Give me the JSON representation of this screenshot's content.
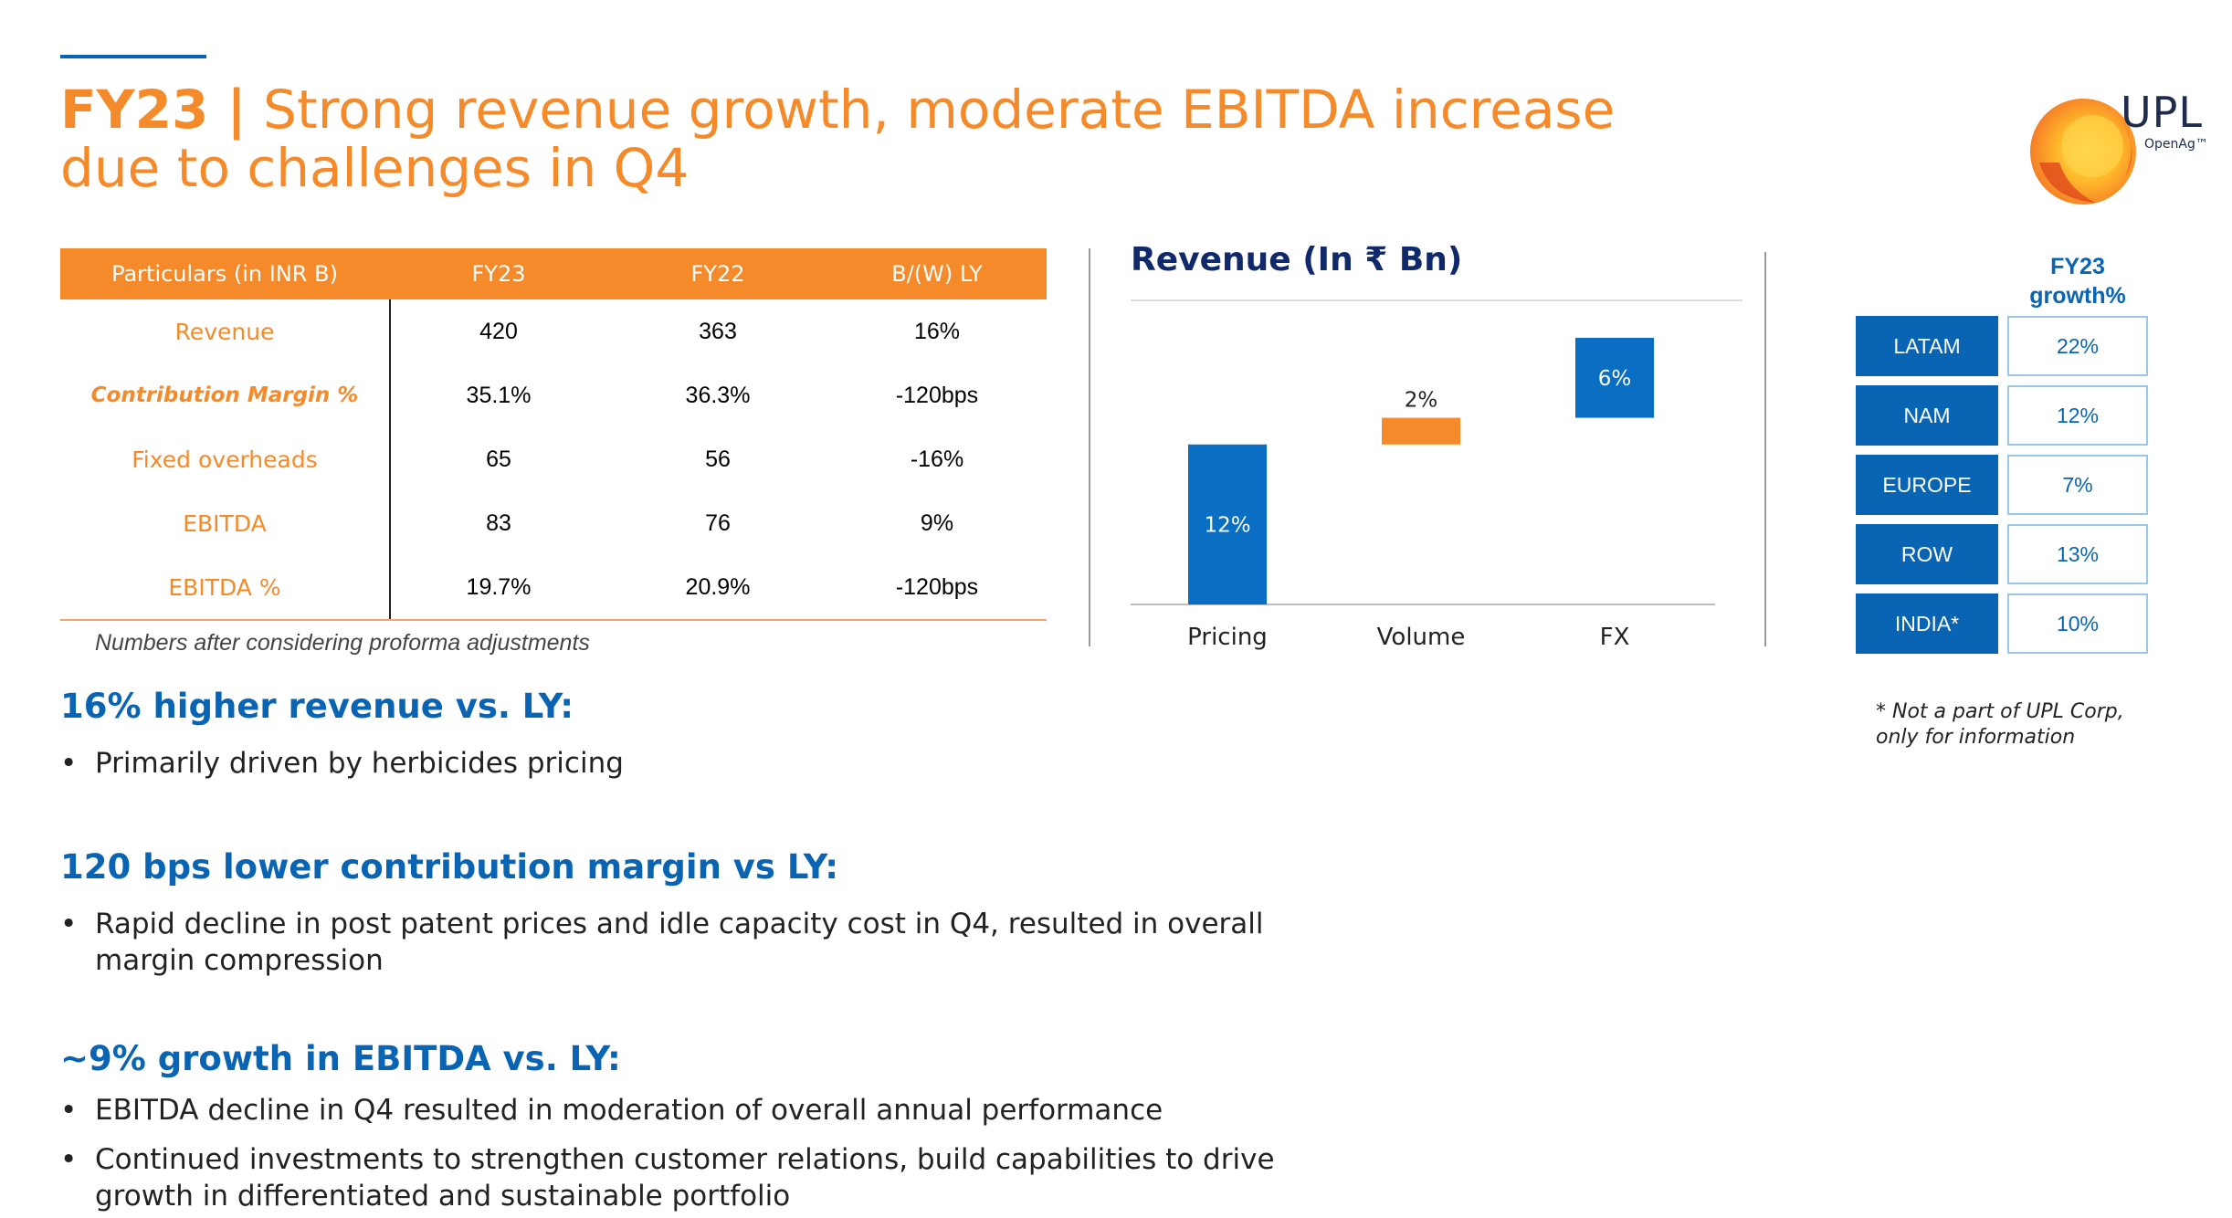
{
  "title": {
    "lead": "FY23 |",
    "text": "Strong revenue growth, moderate EBITDA increase due to challenges in Q4"
  },
  "logo": {
    "name": "UPL",
    "tagline": "OpenAg™"
  },
  "table": {
    "headers": [
      "Particulars  (in INR B)",
      "FY23",
      "FY22",
      "B/(W) LY"
    ],
    "rows": [
      [
        "Revenue",
        "420",
        "363",
        "16%"
      ],
      [
        "Contribution Margin %",
        "35.1%",
        "36.3%",
        "-120bps"
      ],
      [
        "Fixed overheads",
        "65",
        "56",
        "-16%"
      ],
      [
        "EBITDA",
        "83",
        "76",
        "9%"
      ],
      [
        "EBITDA %",
        "19.7%",
        "20.9%",
        "-120bps"
      ]
    ],
    "note": "Numbers after considering proforma adjustments"
  },
  "chart_data": {
    "type": "bar",
    "subtype": "waterfall",
    "title": "Revenue (In ₹ Bn)",
    "categories": [
      "Pricing",
      "Volume",
      "FX"
    ],
    "values": [
      12,
      2,
      6
    ],
    "value_labels": [
      "12%",
      "2%",
      "6%"
    ],
    "colors": [
      "#0a6ec2",
      "#f58a2a",
      "#0a6ec2"
    ]
  },
  "regions": {
    "header": "FY23 growth%",
    "rows": [
      {
        "name": "LATAM",
        "value": "22%"
      },
      {
        "name": "NAM",
        "value": "12%"
      },
      {
        "name": "EUROPE",
        "value": "7%"
      },
      {
        "name": "ROW",
        "value": "13%"
      },
      {
        "name": "INDIA*",
        "value": "10%"
      }
    ],
    "note": "* Not a part of UPL Corp, only for information"
  },
  "sections": [
    {
      "heading": "16% higher revenue vs. LY:",
      "bullets": [
        "Primarily driven by herbicides pricing"
      ]
    },
    {
      "heading": "120 bps lower contribution margin vs LY:",
      "bullets": [
        "Rapid decline in post patent prices and idle capacity cost in Q4, resulted in overall margin compression"
      ]
    },
    {
      "heading": "~9% growth in EBITDA vs. LY:",
      "bullets": [
        "EBITDA decline in Q4 resulted in moderation of overall annual performance",
        "Continued investments to strengthen customer relations, build capabilities to drive growth in differentiated and sustainable portfolio"
      ]
    }
  ],
  "bullet_char": "•",
  "colors": {
    "orange": "#f58a2a",
    "blue": "#0a64b4",
    "navy": "#10296b"
  }
}
